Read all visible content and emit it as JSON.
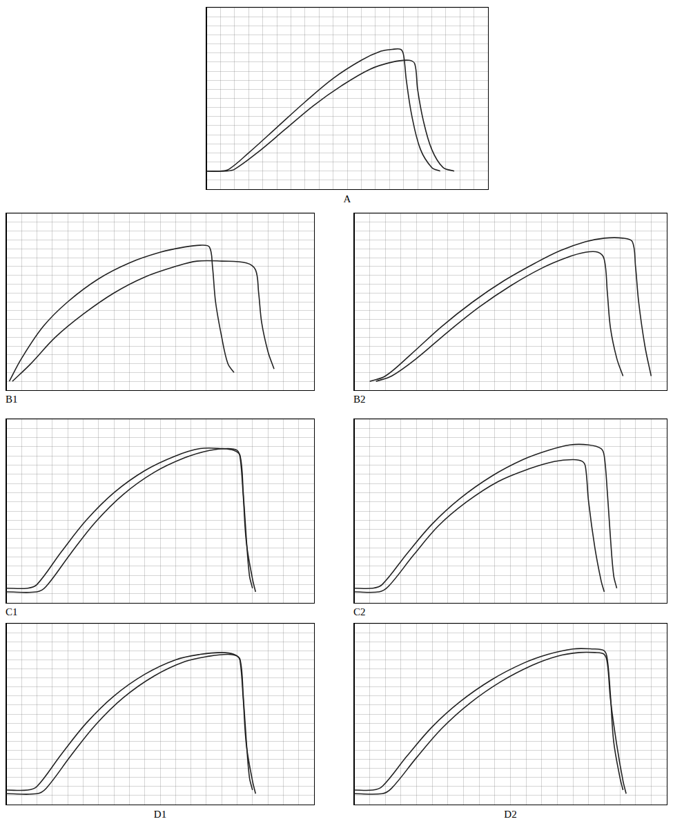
{
  "chart_data": [
    {
      "type": "line",
      "title": "A",
      "xlim": [
        0,
        100
      ],
      "ylim": [
        0,
        100
      ],
      "xticks": [
        0,
        5,
        10,
        15,
        20,
        25,
        30,
        35,
        40,
        45,
        50,
        55,
        60,
        65,
        70,
        75,
        80,
        85,
        90,
        95,
        100
      ],
      "yticks": [
        0,
        5,
        10,
        15,
        20,
        25,
        30,
        35,
        40,
        45,
        50,
        55,
        60,
        65,
        70,
        75,
        80,
        85,
        90,
        95,
        100
      ],
      "grid": true,
      "tick_labels": false,
      "series": [
        {
          "color": "#222222",
          "x": [
            0,
            5,
            8,
            15,
            25,
            35,
            45,
            55,
            62,
            66,
            69,
            70,
            71,
            73,
            76,
            80,
            83
          ],
          "values": [
            10,
            10,
            11,
            20,
            34,
            48,
            61,
            71,
            76,
            77,
            77,
            74,
            60,
            40,
            22,
            12,
            10
          ]
        },
        {
          "color": "#222222",
          "x": [
            0,
            7,
            10,
            18,
            28,
            38,
            48,
            58,
            66,
            72,
            74,
            75,
            77,
            80,
            84,
            88
          ],
          "values": [
            10,
            10,
            11,
            20,
            33,
            46,
            57,
            66,
            70,
            71,
            69,
            55,
            38,
            22,
            12,
            10
          ]
        }
      ]
    },
    {
      "type": "line",
      "title": "B1",
      "xlim": [
        0,
        100
      ],
      "ylim": [
        0,
        100
      ],
      "xticks": [
        0,
        5,
        10,
        15,
        20,
        25,
        30,
        35,
        40,
        45,
        50,
        55,
        60,
        65,
        70,
        75,
        80,
        85,
        90,
        95,
        100
      ],
      "yticks": [
        0,
        5,
        10,
        15,
        20,
        25,
        30,
        35,
        40,
        45,
        50,
        55,
        60,
        65,
        70,
        75,
        80,
        85,
        90,
        95,
        100
      ],
      "grid": true,
      "tick_labels": false,
      "series": [
        {
          "color": "#222222",
          "x": [
            1,
            5,
            12,
            20,
            30,
            40,
            50,
            58,
            63,
            66,
            67,
            68,
            70,
            72,
            74
          ],
          "values": [
            5,
            18,
            36,
            50,
            63,
            72,
            78,
            81,
            82,
            81,
            70,
            50,
            30,
            15,
            10
          ]
        },
        {
          "color": "#222222",
          "x": [
            2,
            8,
            16,
            25,
            35,
            45,
            55,
            62,
            70,
            78,
            81,
            82,
            83,
            85,
            87
          ],
          "values": [
            5,
            15,
            30,
            43,
            55,
            64,
            70,
            73,
            73,
            72,
            68,
            55,
            38,
            22,
            12
          ]
        }
      ]
    },
    {
      "type": "line",
      "title": "B2",
      "xlim": [
        0,
        100
      ],
      "ylim": [
        0,
        100
      ],
      "xticks": [
        0,
        5,
        10,
        15,
        20,
        25,
        30,
        35,
        40,
        45,
        50,
        55,
        60,
        65,
        70,
        75,
        80,
        85,
        90,
        95,
        100
      ],
      "yticks": [
        0,
        5,
        10,
        15,
        20,
        25,
        30,
        35,
        40,
        45,
        50,
        55,
        60,
        65,
        70,
        75,
        80,
        85,
        90,
        95,
        100
      ],
      "grid": true,
      "tick_labels": false,
      "series": [
        {
          "color": "#222222",
          "x": [
            5,
            10,
            18,
            28,
            38,
            48,
            58,
            66,
            74,
            80,
            86,
            89,
            90,
            91,
            93,
            95
          ],
          "values": [
            5,
            8,
            20,
            36,
            50,
            62,
            72,
            79,
            84,
            86,
            86,
            84,
            70,
            50,
            25,
            8
          ]
        },
        {
          "color": "#222222",
          "x": [
            7,
            12,
            20,
            30,
            40,
            50,
            60,
            68,
            74,
            78,
            80,
            81,
            82,
            84,
            86
          ],
          "values": [
            5,
            8,
            18,
            33,
            47,
            59,
            69,
            75,
            78,
            78,
            74,
            55,
            35,
            18,
            8
          ]
        }
      ]
    },
    {
      "type": "line",
      "title": "C1",
      "xlim": [
        0,
        100
      ],
      "ylim": [
        0,
        100
      ],
      "xticks": [
        0,
        5,
        10,
        15,
        20,
        25,
        30,
        35,
        40,
        45,
        50,
        55,
        60,
        65,
        70,
        75,
        80,
        85,
        90,
        95,
        100
      ],
      "yticks": [
        0,
        5,
        10,
        15,
        20,
        25,
        30,
        35,
        40,
        45,
        50,
        55,
        60,
        65,
        70,
        75,
        80,
        85,
        90,
        95,
        100
      ],
      "grid": true,
      "tick_labels": false,
      "series": [
        {
          "color": "#222222",
          "x": [
            0,
            7,
            10,
            18,
            26,
            35,
            45,
            55,
            63,
            70,
            74,
            76,
            77,
            78,
            79,
            80
          ],
          "values": [
            8,
            8,
            10,
            28,
            45,
            60,
            72,
            80,
            84,
            84,
            83,
            80,
            60,
            35,
            15,
            8
          ]
        },
        {
          "color": "#222222",
          "x": [
            0,
            10,
            13,
            21,
            29,
            38,
            48,
            58,
            66,
            72,
            75,
            76,
            77,
            78,
            80,
            81
          ],
          "values": [
            6,
            6,
            9,
            27,
            44,
            59,
            71,
            79,
            83,
            84,
            83,
            79,
            58,
            33,
            13,
            6
          ]
        }
      ]
    },
    {
      "type": "line",
      "title": "C2",
      "xlim": [
        0,
        100
      ],
      "ylim": [
        0,
        100
      ],
      "xticks": [
        0,
        5,
        10,
        15,
        20,
        25,
        30,
        35,
        40,
        45,
        50,
        55,
        60,
        65,
        70,
        75,
        80,
        85,
        90,
        95,
        100
      ],
      "yticks": [
        0,
        5,
        10,
        15,
        20,
        25,
        30,
        35,
        40,
        45,
        50,
        55,
        60,
        65,
        70,
        75,
        80,
        85,
        90,
        95,
        100
      ],
      "grid": true,
      "tick_labels": false,
      "series": [
        {
          "color": "#222222",
          "x": [
            0,
            6,
            9,
            17,
            25,
            34,
            44,
            54,
            62,
            69,
            75,
            79,
            80,
            81,
            82,
            83,
            84
          ],
          "values": [
            8,
            8,
            10,
            27,
            43,
            57,
            69,
            78,
            83,
            86,
            86,
            84,
            80,
            60,
            35,
            15,
            8
          ]
        },
        {
          "color": "#222222",
          "x": [
            0,
            8,
            11,
            19,
            27,
            36,
            46,
            56,
            64,
            70,
            73,
            74,
            75,
            77,
            79,
            80
          ],
          "values": [
            6,
            6,
            9,
            26,
            42,
            55,
            66,
            73,
            77,
            78,
            77,
            74,
            55,
            30,
            12,
            6
          ]
        }
      ]
    },
    {
      "type": "line",
      "title": "D1",
      "xlim": [
        0,
        100
      ],
      "ylim": [
        0,
        100
      ],
      "xticks": [
        0,
        5,
        10,
        15,
        20,
        25,
        30,
        35,
        40,
        45,
        50,
        55,
        60,
        65,
        70,
        75,
        80,
        85,
        90,
        95,
        100
      ],
      "yticks": [
        0,
        5,
        10,
        15,
        20,
        25,
        30,
        35,
        40,
        45,
        50,
        55,
        60,
        65,
        70,
        75,
        80,
        85,
        90,
        95,
        100
      ],
      "grid": true,
      "tick_labels": false,
      "series": [
        {
          "color": "#222222",
          "x": [
            0,
            7,
            10,
            18,
            26,
            35,
            45,
            55,
            63,
            70,
            74,
            76,
            77,
            78,
            79,
            80
          ],
          "values": [
            8,
            8,
            10,
            28,
            45,
            60,
            72,
            80,
            83,
            84,
            83,
            80,
            60,
            35,
            15,
            8
          ]
        },
        {
          "color": "#222222",
          "x": [
            0,
            10,
            13,
            21,
            29,
            38,
            48,
            58,
            66,
            72,
            75,
            76,
            77,
            78,
            80,
            81
          ],
          "values": [
            6,
            6,
            9,
            27,
            44,
            59,
            71,
            79,
            82,
            83,
            82,
            79,
            58,
            33,
            13,
            6
          ]
        }
      ]
    },
    {
      "type": "line",
      "title": "D2",
      "xlim": [
        0,
        100
      ],
      "ylim": [
        0,
        100
      ],
      "xticks": [
        0,
        5,
        10,
        15,
        20,
        25,
        30,
        35,
        40,
        45,
        50,
        55,
        60,
        65,
        70,
        75,
        80,
        85,
        90,
        95,
        100
      ],
      "yticks": [
        0,
        5,
        10,
        15,
        20,
        25,
        30,
        35,
        40,
        45,
        50,
        55,
        60,
        65,
        70,
        75,
        80,
        85,
        90,
        95,
        100
      ],
      "grid": true,
      "tick_labels": false,
      "series": [
        {
          "color": "#222222",
          "x": [
            0,
            6,
            9,
            17,
            25,
            34,
            44,
            54,
            62,
            70,
            76,
            80,
            81,
            82,
            83,
            85,
            86
          ],
          "values": [
            8,
            8,
            10,
            27,
            43,
            57,
            69,
            78,
            83,
            86,
            86,
            85,
            80,
            60,
            35,
            15,
            8
          ]
        },
        {
          "color": "#222222",
          "x": [
            0,
            9,
            12,
            20,
            28,
            37,
            47,
            57,
            65,
            72,
            77,
            80,
            81,
            82,
            84,
            86,
            87
          ],
          "values": [
            6,
            6,
            9,
            26,
            42,
            56,
            68,
            77,
            82,
            84,
            84,
            83,
            78,
            58,
            33,
            13,
            6
          ]
        }
      ]
    }
  ]
}
